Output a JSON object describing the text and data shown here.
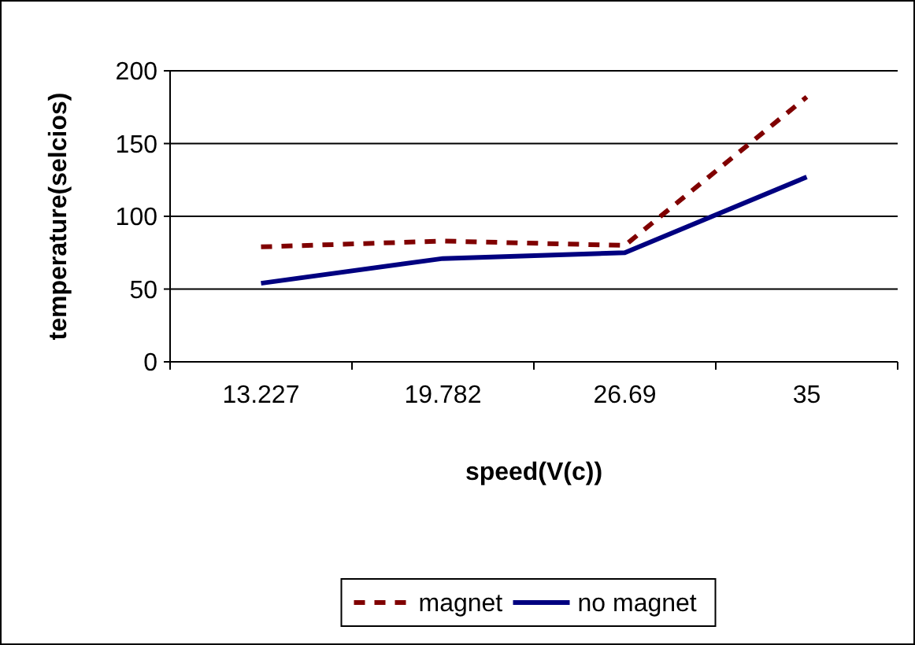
{
  "chart_data": {
    "type": "line",
    "xlabel": "speed(V(c))",
    "ylabel": "temperature(selcios)",
    "categories": [
      "13.227",
      "19.782",
      "26.69",
      "35"
    ],
    "series": [
      {
        "name": "magnet",
        "color": "#800000",
        "line_style": "dashed",
        "values": [
          79,
          83,
          80,
          182
        ]
      },
      {
        "name": "no magnet",
        "color": "#000080",
        "line_style": "solid",
        "values": [
          54,
          71,
          75,
          127
        ]
      }
    ],
    "ylim": [
      0,
      200
    ],
    "yticks": [
      0,
      50,
      100,
      150,
      200
    ],
    "grid": "y",
    "legend": "bottom",
    "marker": "none"
  }
}
